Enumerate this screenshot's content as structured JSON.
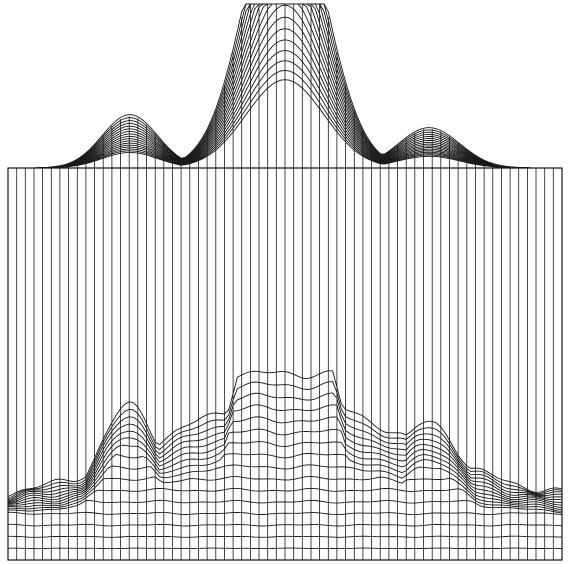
{
  "figure": {
    "kind": "3d-wireframe-surface",
    "background_color": "#ffffff",
    "line_color": "#1a1a1a",
    "labels_shown": false,
    "surface": {
      "description_visible_text": "",
      "peaks": [
        {
          "name": "central-tall-peak",
          "relative_height": 1.0
        },
        {
          "name": "left-ridge",
          "relative_height": 0.55
        },
        {
          "name": "right-shoulder",
          "relative_height": 0.48
        }
      ],
      "column_lines": 64,
      "row_contours": 34
    }
  }
}
